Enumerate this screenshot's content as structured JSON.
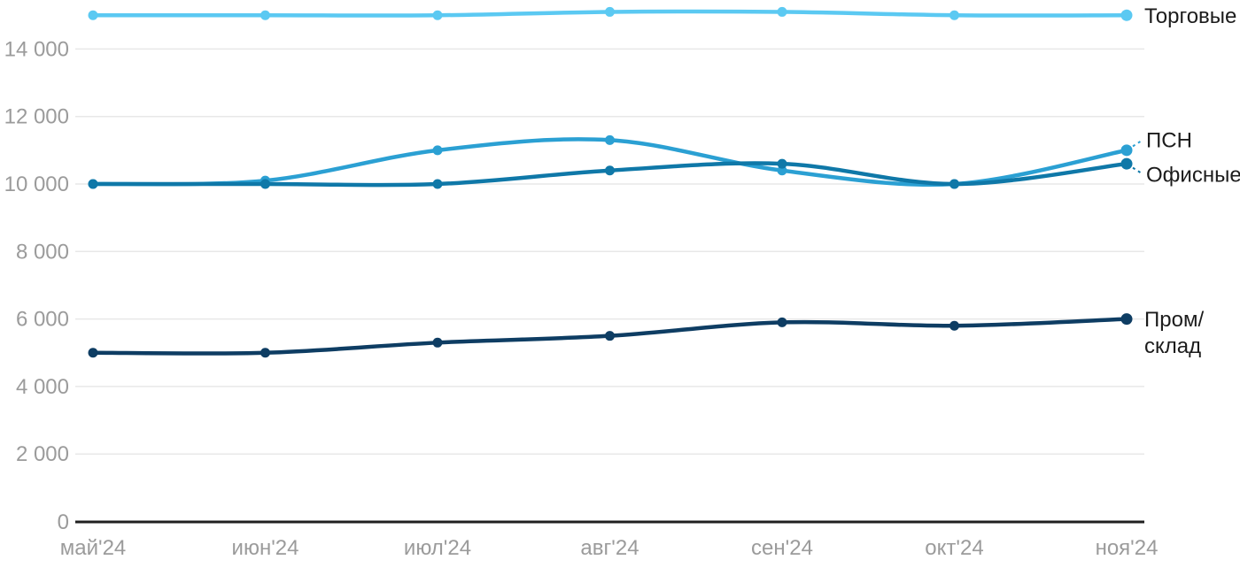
{
  "chart_data": {
    "type": "line",
    "title": "",
    "categories": [
      "май'24",
      "июн'24",
      "июл'24",
      "авг'24",
      "сен'24",
      "окт'24",
      "ноя'24"
    ],
    "series": [
      {
        "name": "Торговые",
        "color": "#5BC9F2",
        "values": [
          15000,
          15000,
          15000,
          15100,
          15100,
          15000,
          15000
        ],
        "label_lines": [
          "Торговые"
        ],
        "leader": false,
        "label_offset_y": 0
      },
      {
        "name": "ПСН",
        "color": "#2BA0D3",
        "values": [
          10000,
          10100,
          11000,
          11300,
          10400,
          10000,
          11000
        ],
        "label_lines": [
          "ПСН"
        ],
        "leader": true,
        "label_offset_y": -12
      },
      {
        "name": "Офисные",
        "color": "#0F78A8",
        "values": [
          10000,
          10000,
          10000,
          10400,
          10600,
          10000,
          10600
        ],
        "label_lines": [
          "Офисные"
        ],
        "leader": true,
        "label_offset_y": 12
      },
      {
        "name": "Пром/склад",
        "color": "#0E3D63",
        "values": [
          5000,
          5000,
          5300,
          5500,
          5900,
          5800,
          6000
        ],
        "label_lines": [
          "Пром/",
          "склад"
        ],
        "leader": false,
        "label_offset_y": 0
      }
    ],
    "y_axis": {
      "range": [
        0,
        15500
      ],
      "ticks": [
        {
          "value": 0,
          "label": "0"
        },
        {
          "value": 2000,
          "label": "2 000"
        },
        {
          "value": 4000,
          "label": "4 000"
        },
        {
          "value": 6000,
          "label": "6 000"
        },
        {
          "value": 8000,
          "label": "8 000"
        },
        {
          "value": 10000,
          "label": "10 000"
        },
        {
          "value": 12000,
          "label": "12 000"
        },
        {
          "value": 14000,
          "label": "14 000"
        }
      ]
    },
    "grid": true,
    "legend_position": "right-inline"
  },
  "colors": {
    "background": "#FFFFFF",
    "grid": "#E8E8E8",
    "axis": "#1F1F1F",
    "tick_text": "#9B9B9B",
    "label_text": "#1C1C1C"
  }
}
